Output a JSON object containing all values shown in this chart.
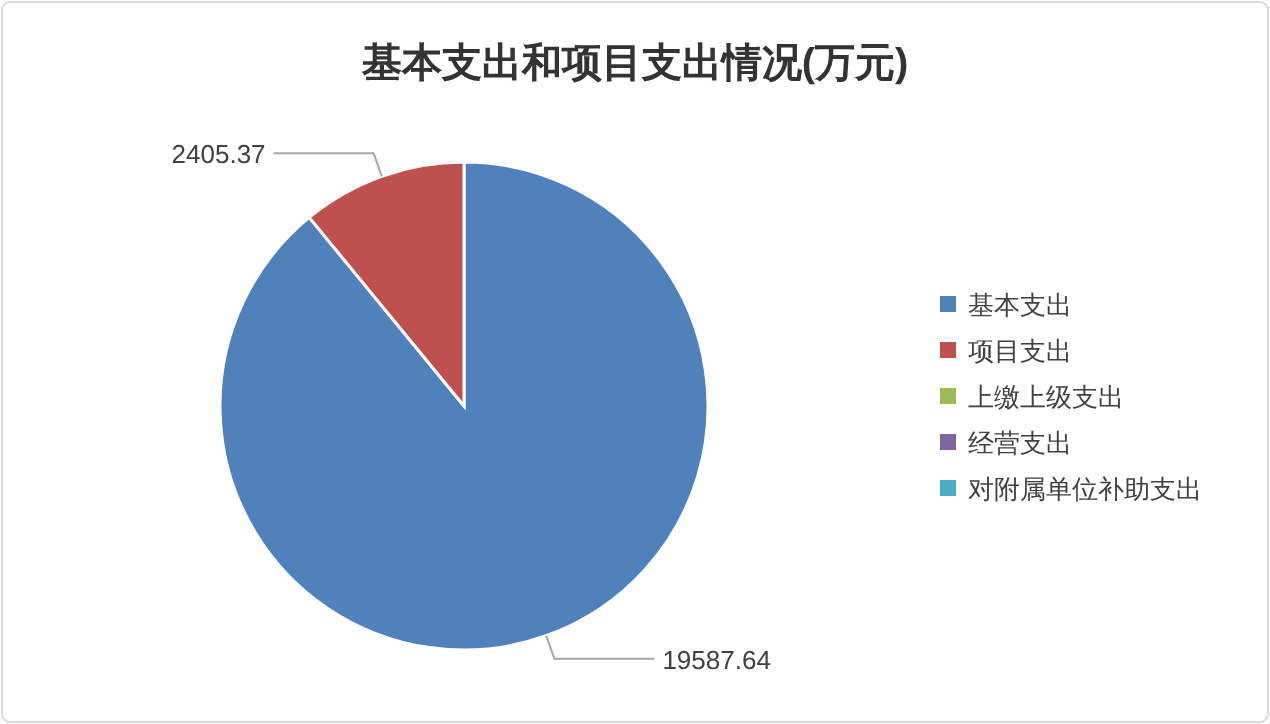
{
  "chart_data": {
    "type": "pie",
    "title": "基本支出和项目支出情况(万元)",
    "categories": [
      "基本支出",
      "项目支出",
      "上缴上级支出",
      "经营支出",
      "对附属单位补助支出"
    ],
    "values": [
      19587.64,
      2405.37,
      0,
      0,
      0
    ],
    "value_labels": [
      "19587.64",
      "2405.37",
      null,
      null,
      null
    ],
    "colors": [
      "#4f81bd",
      "#c0504d",
      "#9bbb59",
      "#8064a2",
      "#4bacc6"
    ],
    "legend": "right"
  }
}
